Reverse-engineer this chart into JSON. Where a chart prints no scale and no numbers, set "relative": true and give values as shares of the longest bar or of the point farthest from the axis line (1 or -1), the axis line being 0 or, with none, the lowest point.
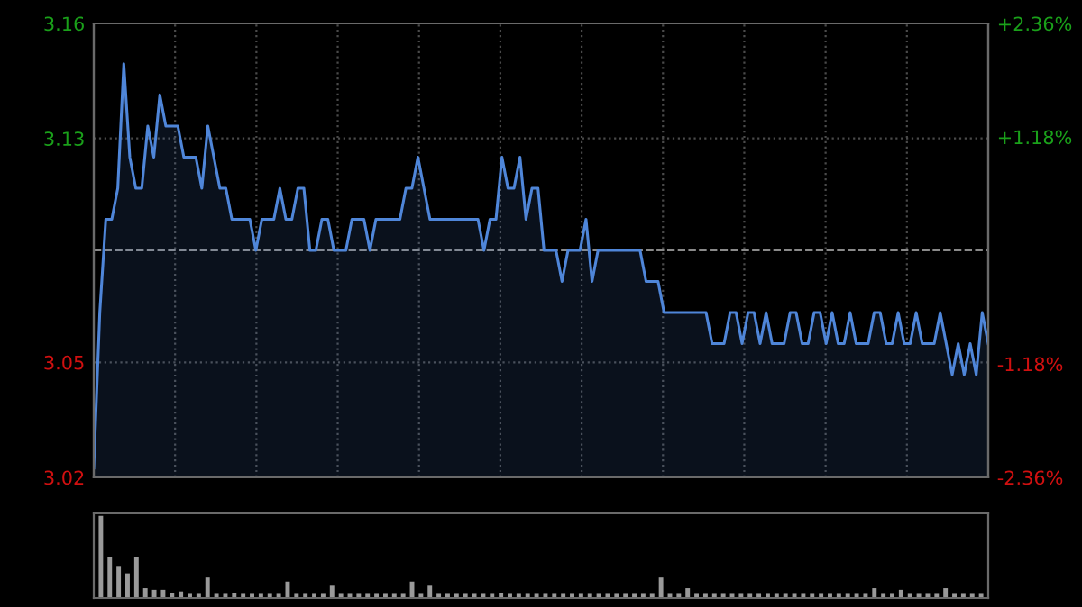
{
  "chart_data": [
    {
      "type": "area",
      "ylim": [
        3.017,
        3.163
      ],
      "yticks": [
        {
          "value": 3.017,
          "label": "3.02"
        },
        {
          "value": 3.054,
          "label": "3.05"
        },
        {
          "value": 3.09,
          "label": null
        },
        {
          "value": 3.126,
          "label": "3.13"
        },
        {
          "value": 3.163,
          "label": "3.16"
        }
      ],
      "y2lim": [
        -2.36,
        2.36
      ],
      "y2ticks": [
        {
          "value": -2.36,
          "label": "-2.36%"
        },
        {
          "value": -1.18,
          "label": "-1.18%"
        },
        {
          "value": 1.18,
          "label": "+1.18%"
        },
        {
          "value": 2.36,
          "label": "+2.36%"
        }
      ],
      "grid": true,
      "legend": false,
      "ref_lines": [
        {
          "axis": "y",
          "value": 3.09,
          "color": "#8a8a8a",
          "line_style": "dashed"
        }
      ],
      "categories": [
        null,
        null,
        null,
        null,
        null,
        null,
        null,
        null,
        null,
        null,
        null,
        null,
        null,
        null,
        null,
        null,
        null,
        null,
        null,
        null,
        null,
        null,
        null,
        null,
        null,
        null,
        null,
        null,
        null,
        null,
        null,
        null,
        null,
        null,
        null,
        null,
        null,
        null,
        null,
        null,
        null,
        null,
        null,
        null,
        null,
        null,
        null,
        null,
        null,
        null,
        null,
        null,
        null,
        null,
        null,
        null,
        null,
        null,
        null,
        null,
        null,
        null,
        null,
        null,
        null,
        null,
        null,
        null,
        null,
        null,
        null,
        null,
        null,
        null,
        null,
        null,
        null,
        null,
        null,
        null,
        null,
        null,
        null,
        null,
        null,
        null,
        null,
        null,
        null,
        null,
        null,
        null,
        null,
        null,
        null,
        null,
        null,
        null,
        null,
        null,
        null,
        null,
        null,
        null,
        null,
        null,
        null,
        null,
        null,
        null,
        null,
        null,
        null,
        null,
        null,
        null,
        null,
        null,
        null,
        null,
        null,
        null,
        null,
        null,
        null,
        null,
        null,
        null,
        null,
        null,
        null,
        null,
        null,
        null,
        null,
        null,
        null,
        null,
        null,
        null,
        null,
        null,
        null,
        null,
        null,
        null,
        null,
        null,
        null,
        null
      ],
      "series": [
        {
          "color": "#4f86d9",
          "values": [
            3.02,
            3.07,
            3.1,
            3.1,
            3.11,
            3.15,
            3.12,
            3.11,
            3.11,
            3.13,
            3.12,
            3.14,
            3.13,
            3.13,
            3.13,
            3.12,
            3.12,
            3.12,
            3.11,
            3.13,
            3.12,
            3.11,
            3.11,
            3.1,
            3.1,
            3.1,
            3.1,
            3.09,
            3.1,
            3.1,
            3.1,
            3.11,
            3.1,
            3.1,
            3.11,
            3.11,
            3.09,
            3.09,
            3.1,
            3.1,
            3.09,
            3.09,
            3.09,
            3.1,
            3.1,
            3.1,
            3.09,
            3.1,
            3.1,
            3.1,
            3.1,
            3.1,
            3.11,
            3.11,
            3.12,
            3.11,
            3.1,
            3.1,
            3.1,
            3.1,
            3.1,
            3.1,
            3.1,
            3.1,
            3.1,
            3.09,
            3.1,
            3.1,
            3.12,
            3.11,
            3.11,
            3.12,
            3.1,
            3.11,
            3.11,
            3.09,
            3.09,
            3.09,
            3.08,
            3.09,
            3.09,
            3.09,
            3.1,
            3.08,
            3.09,
            3.09,
            3.09,
            3.09,
            3.09,
            3.09,
            3.09,
            3.09,
            3.08,
            3.08,
            3.08,
            3.07,
            3.07,
            3.07,
            3.07,
            3.07,
            3.07,
            3.07,
            3.07,
            3.06,
            3.06,
            3.06,
            3.07,
            3.07,
            3.06,
            3.07,
            3.07,
            3.06,
            3.07,
            3.06,
            3.06,
            3.06,
            3.07,
            3.07,
            3.06,
            3.06,
            3.07,
            3.07,
            3.06,
            3.07,
            3.06,
            3.06,
            3.07,
            3.06,
            3.06,
            3.06,
            3.07,
            3.07,
            3.06,
            3.06,
            3.07,
            3.06,
            3.06,
            3.07,
            3.06,
            3.06,
            3.06,
            3.07,
            3.06,
            3.05,
            3.06,
            3.05,
            3.06,
            3.05,
            3.07,
            3.06
          ]
        }
      ]
    },
    {
      "type": "bar",
      "relative": true,
      "categories": [
        null,
        null,
        null,
        null,
        null,
        null,
        null,
        null,
        null,
        null,
        null,
        null,
        null,
        null,
        null,
        null,
        null,
        null,
        null,
        null,
        null,
        null,
        null,
        null,
        null,
        null,
        null,
        null,
        null,
        null,
        null,
        null,
        null,
        null,
        null,
        null,
        null,
        null,
        null,
        null,
        null,
        null,
        null,
        null,
        null,
        null,
        null,
        null,
        null,
        null,
        null,
        null,
        null,
        null,
        null,
        null,
        null,
        null,
        null,
        null,
        null,
        null,
        null,
        null,
        null,
        null,
        null,
        null,
        null,
        null,
        null,
        null,
        null,
        null,
        null,
        null,
        null,
        null,
        null,
        null,
        null,
        null,
        null,
        null,
        null,
        null,
        null,
        null,
        null,
        null,
        null,
        null,
        null,
        null,
        null,
        null,
        null,
        null,
        null,
        null
      ],
      "series": [
        {
          "color": "#9a9a9a",
          "values": [
            1,
            0.5,
            0.38,
            0.3,
            0.5,
            0.12,
            0.1,
            0.1,
            0.06,
            0.08,
            0.05,
            0.05,
            0.25,
            0.05,
            0.05,
            0.06,
            0.05,
            0.05,
            0.05,
            0.05,
            0.05,
            0.2,
            0.05,
            0.05,
            0.05,
            0.05,
            0.15,
            0.05,
            0.05,
            0.05,
            0.05,
            0.05,
            0.05,
            0.05,
            0.05,
            0.2,
            0.05,
            0.15,
            0.05,
            0.05,
            0.05,
            0.05,
            0.05,
            0.05,
            0.05,
            0.06,
            0.05,
            0.05,
            0.05,
            0.05,
            0.05,
            0.05,
            0.05,
            0.05,
            0.05,
            0.05,
            0.05,
            0.05,
            0.05,
            0.05,
            0.05,
            0.05,
            0.05,
            0.25,
            0.05,
            0.05,
            0.12,
            0.05,
            0.05,
            0.05,
            0.05,
            0.05,
            0.05,
            0.05,
            0.05,
            0.05,
            0.05,
            0.05,
            0.05,
            0.05,
            0.05,
            0.05,
            0.05,
            0.05,
            0.05,
            0.05,
            0.05,
            0.12,
            0.05,
            0.05,
            0.1,
            0.05,
            0.05,
            0.05,
            0.05,
            0.12,
            0.05,
            0.05,
            0.05,
            0.05
          ]
        }
      ]
    }
  ]
}
